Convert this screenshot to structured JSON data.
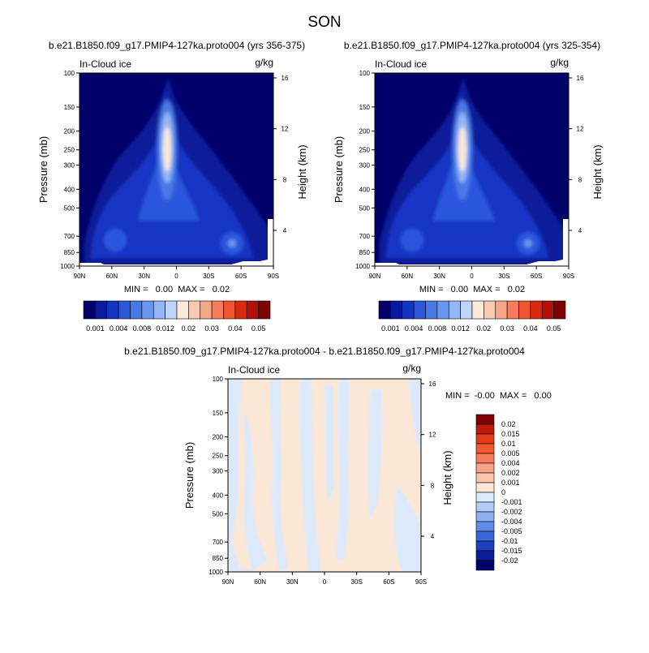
{
  "main_title": "SON",
  "panels": [
    {
      "title": "b.e21.B1850.f09_g17.PMIP4-127ka.proto004 (yrs 356-375)",
      "corner_left": "In-Cloud ice",
      "corner_right": "g/kg",
      "ylabel": "Pressure (mb)",
      "ylabel_right": "Height (km)",
      "stats": "MIN =   0.00  MAX =   0.02"
    },
    {
      "title": "b.e21.B1850.f09_g17.PMIP4-127ka.proto004 (yrs 325-354)",
      "corner_left": "In-Cloud ice",
      "corner_right": "g/kg",
      "ylabel": "Pressure (mb)",
      "ylabel_right": "Height (km)",
      "stats": "MIN =   0.00  MAX =   0.02"
    },
    {
      "title": "b.e21.B1850.f09_g17.PMIP4-127ka.proto004 - b.e21.B1850.f09_g17.PMIP4-127ka.proto004",
      "corner_left": "In-Cloud ice",
      "corner_right": "g/kg",
      "ylabel": "Pressure (mb)",
      "ylabel_right": "Height (km)",
      "stats": "MIN =  -0.00  MAX =   0.00"
    }
  ],
  "chart_data": [
    {
      "type": "heatmap",
      "x_ticks": [
        "90N",
        "60N",
        "30N",
        "0",
        "30S",
        "60S",
        "90S"
      ],
      "y_ticks": [
        "100",
        "150",
        "200",
        "250",
        "300",
        "400",
        "500",
        "700",
        "850",
        "1000"
      ],
      "y_scale": "log",
      "y_right_ticks": [
        "16",
        "12",
        "8",
        "4"
      ],
      "colorbar_levels": [
        "0.001",
        "0.004",
        "0.008",
        "0.012",
        "0.02",
        "0.03",
        "0.04",
        "0.05"
      ],
      "colorbar_colors": [
        "#03006b",
        "#0a1a9a",
        "#1434c4",
        "#2c57dd",
        "#4878e6",
        "#6a97ee",
        "#93b6f4",
        "#bed4fa",
        "#fbe9da",
        "#f8cbb0",
        "#f6a787",
        "#f47c5a",
        "#ef5430",
        "#d92a10",
        "#b4100a",
        "#7e0203"
      ],
      "ice_peak": {
        "latitude": "10N",
        "pressure_mb": 250
      }
    },
    {
      "type": "heatmap",
      "x_ticks": [
        "90N",
        "60N",
        "30N",
        "0",
        "30S",
        "60S",
        "90S"
      ],
      "y_ticks": [
        "100",
        "150",
        "200",
        "250",
        "300",
        "400",
        "500",
        "700",
        "850",
        "1000"
      ],
      "y_scale": "log",
      "y_right_ticks": [
        "16",
        "12",
        "8",
        "4"
      ],
      "colorbar_levels": [
        "0.001",
        "0.004",
        "0.008",
        "0.012",
        "0.02",
        "0.03",
        "0.04",
        "0.05"
      ],
      "ice_peak": {
        "latitude": "10N",
        "pressure_mb": 250
      }
    },
    {
      "type": "heatmap",
      "x_ticks": [
        "90N",
        "60N",
        "30N",
        "0",
        "30S",
        "60S",
        "90S"
      ],
      "y_ticks": [
        "100",
        "150",
        "200",
        "250",
        "300",
        "400",
        "500",
        "700",
        "850",
        "1000"
      ],
      "y_scale": "log",
      "y_right_ticks": [
        "16",
        "12",
        "8",
        "4"
      ],
      "colorbar_levels": [
        "0.02",
        "0.015",
        "0.01",
        "0.005",
        "0.004",
        "0.002",
        "0.001",
        "0",
        "-0.001",
        "-0.002",
        "-0.004",
        "-0.005",
        "-0.01",
        "-0.015",
        "-0.02"
      ],
      "colorbar_colors": [
        "#7e0203",
        "#c01a0a",
        "#e33a18",
        "#ef5a30",
        "#f47c5a",
        "#f7a285",
        "#f9c6aa",
        "#fbe7d6",
        "#dce9fa",
        "#b4cdf4",
        "#8cb0ee",
        "#5e8ce6",
        "#3b67dc",
        "#1e3fc0",
        "#0a1d98",
        "#03006b"
      ]
    }
  ]
}
